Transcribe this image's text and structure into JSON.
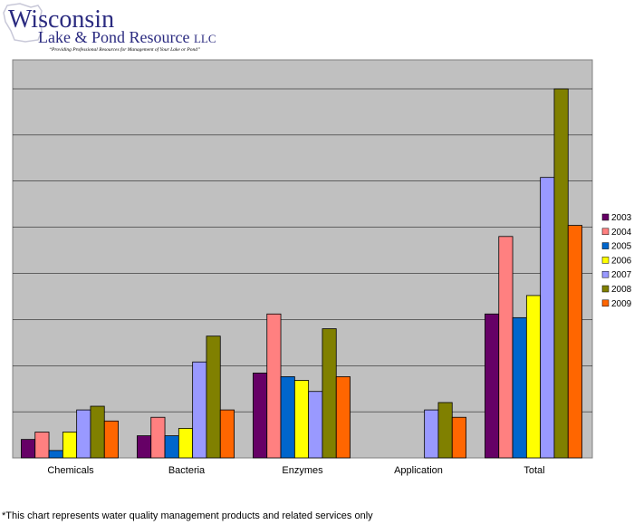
{
  "header": {
    "logo_word": "Wisconsin",
    "logo_line2": "Lake & Pond Resource",
    "logo_llc": "LLC",
    "tagline": "“Providing Professional Resources for Management of Your Lake or Pond”"
  },
  "footnote": "*This chart represents water quality management products and related services only",
  "colors": {
    "plot_bg": "#c0c0c0",
    "series": [
      "#660066",
      "#ff8080",
      "#0066cc",
      "#ffff00",
      "#9999ff",
      "#808000",
      "#ff6600"
    ]
  },
  "chart_data": {
    "type": "bar",
    "title": "",
    "xlabel": "",
    "ylabel": "",
    "ylim": [
      0,
      100
    ],
    "grid": true,
    "legend_position": "right",
    "categories": [
      "Chemicals",
      "Bacteria",
      "Enzymes",
      "Application",
      "Total"
    ],
    "series": [
      {
        "name": "2003",
        "values": [
          5,
          6,
          23,
          0,
          39
        ]
      },
      {
        "name": "2004",
        "values": [
          7,
          11,
          39,
          0,
          60
        ]
      },
      {
        "name": "2005",
        "values": [
          2,
          6,
          22,
          0,
          38
        ]
      },
      {
        "name": "2006",
        "values": [
          7,
          8,
          21,
          0,
          44
        ]
      },
      {
        "name": "2007",
        "values": [
          13,
          26,
          18,
          13,
          76
        ]
      },
      {
        "name": "2008",
        "values": [
          14,
          33,
          35,
          15,
          100
        ]
      },
      {
        "name": "2009",
        "values": [
          10,
          13,
          22,
          11,
          63
        ]
      }
    ]
  }
}
